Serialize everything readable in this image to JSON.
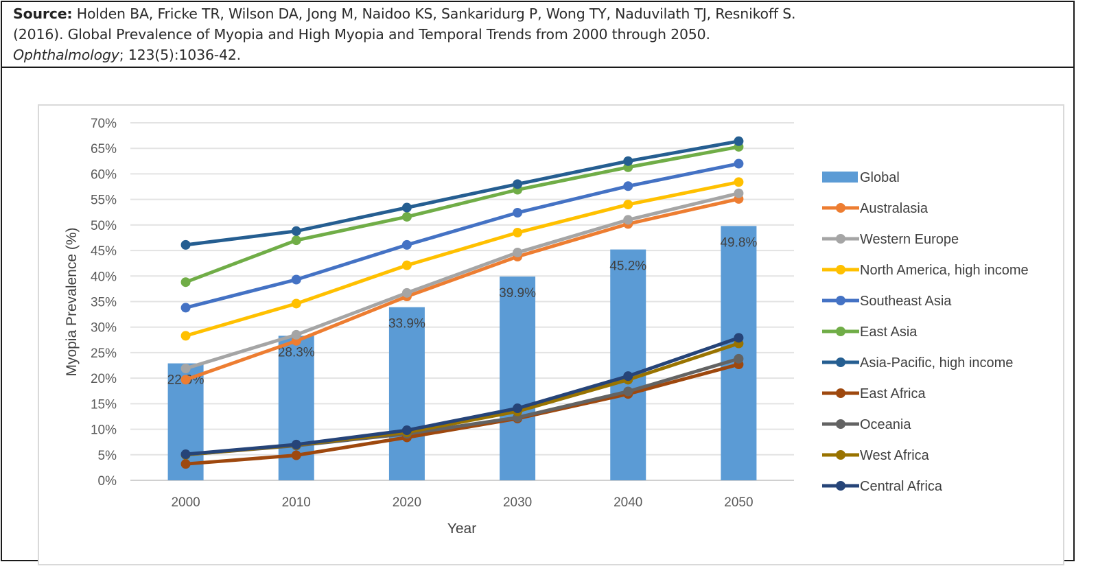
{
  "source": {
    "label": "Source:",
    "authors": "Holden BA, Fricke TR, Wilson DA, Jong M, Naidoo KS, Sankaridurg P, Wong TY, Naduvilath TJ, Resnikoff S.",
    "title_line": "(2016). Global Prevalence of Myopia and High Myopia and Temporal Trends from 2000 through 2050.",
    "journal": "Ophthalmology",
    "citation": "; 123(5):1036-42."
  },
  "chart_data": {
    "type": "bar+line",
    "title": "",
    "xlabel": "Year",
    "ylabel": "Myopia Prevalence (%)",
    "ylim": [
      0,
      70
    ],
    "ytick_step": 5,
    "yticks": [
      "0%",
      "5%",
      "10%",
      "15%",
      "20%",
      "25%",
      "30%",
      "35%",
      "40%",
      "45%",
      "50%",
      "55%",
      "60%",
      "65%",
      "70%"
    ],
    "categories": [
      "2000",
      "2010",
      "2020",
      "2030",
      "2040",
      "2050"
    ],
    "grid": true,
    "legend_position": "right",
    "bar_series": {
      "name": "Global",
      "color": "#5b9bd5",
      "values": [
        22.9,
        28.3,
        33.9,
        39.9,
        45.2,
        49.8
      ],
      "data_labels": [
        "22.9%",
        "28.3%",
        "33.9%",
        "39.9%",
        "45.2%",
        "49.8%"
      ]
    },
    "series": [
      {
        "name": "Australasia",
        "color": "#ed7d31",
        "values": [
          19.7,
          27.3,
          36.0,
          43.8,
          50.2,
          55.1
        ]
      },
      {
        "name": "Western Europe",
        "color": "#a5a5a5",
        "values": [
          21.9,
          28.5,
          36.7,
          44.6,
          51.0,
          56.2
        ]
      },
      {
        "name": "North America, high income",
        "color": "#ffc000",
        "values": [
          28.3,
          34.6,
          42.1,
          48.5,
          54.0,
          58.4
        ]
      },
      {
        "name": "Southeast Asia",
        "color": "#4472c4",
        "values": [
          33.8,
          39.3,
          46.1,
          52.4,
          57.6,
          62.0
        ]
      },
      {
        "name": "East Asia",
        "color": "#70ad47",
        "values": [
          38.8,
          47.0,
          51.6,
          56.9,
          61.3,
          65.3
        ]
      },
      {
        "name": "Asia-Pacific, high income",
        "color": "#255e91",
        "values": [
          46.1,
          48.8,
          53.4,
          58.0,
          62.5,
          66.4
        ]
      },
      {
        "name": "East Africa",
        "color": "#9e480e",
        "values": [
          3.2,
          4.9,
          8.4,
          12.1,
          16.9,
          22.7
        ]
      },
      {
        "name": "Oceania",
        "color": "#636363",
        "values": [
          5.0,
          6.8,
          9.1,
          12.3,
          17.4,
          23.8
        ]
      },
      {
        "name": "West Africa",
        "color": "#997300",
        "values": [
          5.0,
          6.9,
          9.4,
          13.5,
          19.7,
          26.8
        ]
      },
      {
        "name": "Central Africa",
        "color": "#264478",
        "values": [
          5.1,
          7.0,
          9.8,
          14.1,
          20.4,
          27.9
        ]
      }
    ]
  }
}
